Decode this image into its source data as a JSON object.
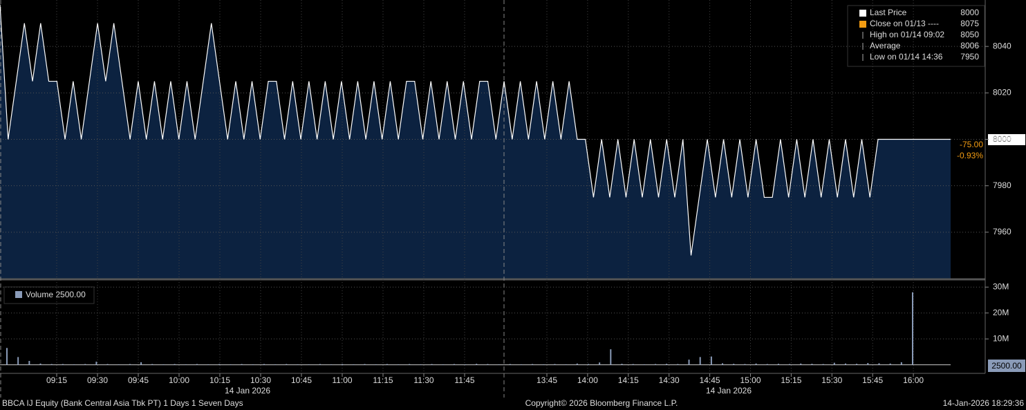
{
  "chart_data": {
    "type": "line",
    "legend": [
      {
        "label": "Last Price",
        "value": 8000,
        "color": "#ffffff"
      },
      {
        "label": "Close on 01/13 ----",
        "value": 8075,
        "color": "#f39c12"
      },
      {
        "label": "High on 01/14 09:02",
        "value": 8050,
        "color": "#aaaaaa"
      },
      {
        "label": "Average",
        "value": 8006,
        "color": "#aaaaaa"
      },
      {
        "label": "Low on 01/14 14:36",
        "value": 7950,
        "color": "#aaaaaa"
      }
    ],
    "last_tag": "8000",
    "change": [
      "-75.00",
      "-0.93%"
    ],
    "ylim": [
      7940,
      8060
    ],
    "yticks": [
      7960,
      7980,
      8000,
      8020,
      8040
    ],
    "xticks": [
      "09:15",
      "09:30",
      "09:45",
      "10:00",
      "10:15",
      "10:30",
      "10:45",
      "11:00",
      "11:15",
      "11:30",
      "11:45",
      "13:45",
      "14:00",
      "14:15",
      "14:30",
      "14:45",
      "15:00",
      "15:15",
      "15:30",
      "15:45",
      "16:00"
    ],
    "date_labels": [
      "14 Jan 2026",
      "14 Jan 2026"
    ],
    "series": [
      {
        "name": "Last Price",
        "color": "#ffffff",
        "values": [
          8058,
          8000,
          8025,
          8050,
          8025,
          8050,
          8025,
          8025,
          8000,
          8025,
          8000,
          8025,
          8050,
          8025,
          8050,
          8025,
          8000,
          8025,
          8000,
          8025,
          8000,
          8025,
          8000,
          8025,
          8000,
          8025,
          8050,
          8025,
          8000,
          8025,
          8000,
          8025,
          8000,
          8025,
          8025,
          8000,
          8025,
          8000,
          8025,
          8000,
          8025,
          8000,
          8025,
          8000,
          8025,
          8000,
          8025,
          8000,
          8025,
          8000,
          8025,
          8025,
          8000,
          8025,
          8000,
          8025,
          8000,
          8025,
          8000,
          8025,
          8025,
          8000,
          8025,
          8000,
          8025,
          8000,
          8025,
          8000,
          8025,
          8000,
          8025,
          8000,
          8000,
          7975,
          8000,
          7975,
          8000,
          7975,
          8000,
          7975,
          8000,
          7975,
          8000,
          7975,
          8000,
          7950,
          7975,
          8000,
          7975,
          8000,
          7975,
          8000,
          7975,
          8000,
          7975,
          7975,
          8000,
          7975,
          8000,
          7975,
          8000,
          7975,
          8000,
          7975,
          8000,
          7975,
          8000,
          7975,
          8000
        ]
      }
    ],
    "volume": {
      "label": "Volume 2500.00",
      "tag": "2500.00",
      "color": "#8a9bb8",
      "ylim": [
        -3300000,
        32200000
      ],
      "yticks": [
        {
          "value": 10000000,
          "label": "10M"
        },
        {
          "value": 20000000,
          "label": "20M"
        },
        {
          "value": 30000000,
          "label": "30M"
        }
      ],
      "values": [
        6500000,
        3000000,
        1500000,
        500000,
        300000,
        300000,
        200000,
        300000,
        1200000,
        300000,
        200000,
        300000,
        1000000,
        300000,
        200000,
        300000,
        200000,
        300000,
        200000,
        300000,
        200000,
        300000,
        200000,
        300000,
        200000,
        300000,
        200000,
        200000,
        300000,
        200000,
        300000,
        200000,
        300000,
        200000,
        300000,
        200000,
        300000,
        200000,
        300000,
        200000,
        300000,
        200000,
        400000,
        300000,
        200000,
        300000,
        200000,
        300000,
        200000,
        300000,
        200000,
        500000,
        300000,
        900000,
        6000000,
        400000,
        300000,
        200000,
        300000,
        400000,
        300000,
        2000000,
        3000000,
        3200000,
        600000,
        400000,
        300000,
        500000,
        300000,
        400000,
        300000,
        500000,
        400000,
        300000,
        800000,
        500000,
        400000,
        700000,
        600000,
        500000,
        1000000,
        28000000
      ]
    },
    "footer": [
      "BBCA IJ Equity (Bank Central Asia Tbk PT) 1 Days 1 Seven Days",
      "Copyright© 2026 Bloomberg Finance L.P.",
      "14-Jan-2026 18:29:36"
    ]
  }
}
